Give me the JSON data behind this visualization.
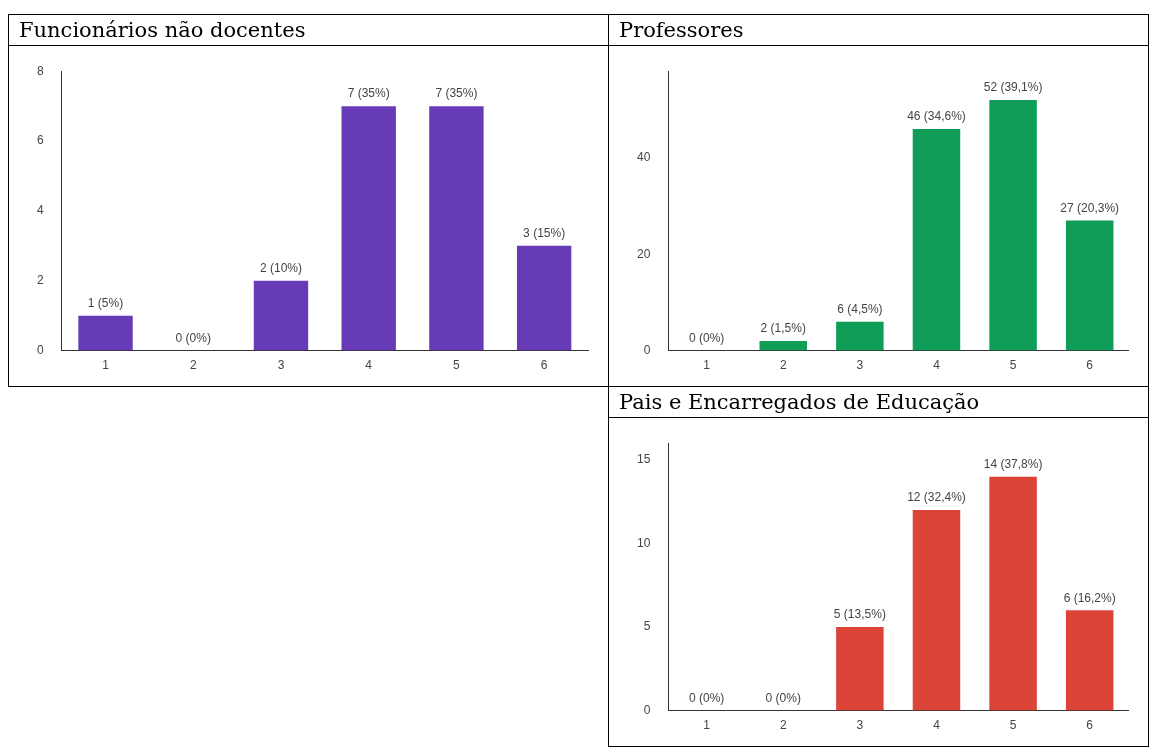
{
  "chart_data": [
    {
      "type": "bar",
      "title": "Funcionários não docentes",
      "categories": [
        "1",
        "2",
        "3",
        "4",
        "5",
        "6"
      ],
      "values": [
        1,
        0,
        2,
        7,
        7,
        3
      ],
      "value_labels": [
        "1 (5%)",
        "0 (0%)",
        "2 (10%)",
        "7 (35%)",
        "7 (35%)",
        "3 (15%)"
      ],
      "color": "#673ab7",
      "ylim": [
        0,
        8
      ],
      "yticks": [
        0,
        2,
        4,
        6,
        8
      ],
      "grid": false,
      "legend": false
    },
    {
      "type": "bar",
      "title": "Professores",
      "categories": [
        "1",
        "2",
        "3",
        "4",
        "5",
        "6"
      ],
      "values": [
        0,
        2,
        6,
        46,
        52,
        27
      ],
      "value_labels": [
        "0 (0%)",
        "2 (1,5%)",
        "6 (4,5%)",
        "46 (34,6%)",
        "52 (39,1%)",
        "27 (20,3%)"
      ],
      "color": "#0f9d58",
      "ylim": [
        0,
        58
      ],
      "yticks": [
        0,
        20,
        40
      ],
      "grid": false,
      "legend": false
    },
    {
      "type": "bar",
      "title": "Pais e Encarregados de Educação",
      "categories": [
        "1",
        "2",
        "3",
        "4",
        "5",
        "6"
      ],
      "values": [
        0,
        0,
        5,
        12,
        14,
        6
      ],
      "value_labels": [
        "0 (0%)",
        "0 (0%)",
        "5 (13,5%)",
        "12 (32,4%)",
        "14 (37,8%)",
        "6 (16,2%)"
      ],
      "color": "#db4437",
      "ylim": [
        0,
        16
      ],
      "yticks": [
        0,
        5,
        10,
        15
      ],
      "grid": false,
      "legend": false
    }
  ]
}
